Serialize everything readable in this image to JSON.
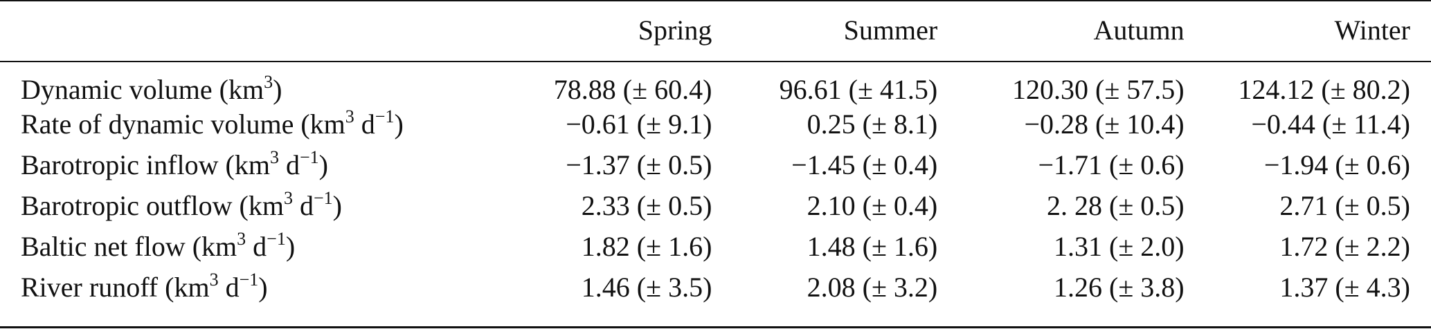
{
  "table": {
    "columns": [
      "",
      "Spring",
      "Summer",
      "Autumn",
      "Winter"
    ],
    "rows": [
      {
        "name": "Dynamic volume",
        "unit": "(km3)",
        "values": [
          "78.88 (± 60.4)",
          "96.61 (± 41.5)",
          "120.30 (± 57.5)",
          "124.12 (± 80.2)"
        ]
      },
      {
        "name": "Rate of dynamic volume",
        "unit": "(km3 d−1)",
        "values": [
          "−0.61 (± 9.1)",
          "0.25 (± 8.1)",
          "−0.28 (± 10.4)",
          "−0.44 (± 11.4)"
        ]
      },
      {
        "name": "Barotropic inflow",
        "unit": "(km3 d−1)",
        "values": [
          "−1.37 (± 0.5)",
          "−1.45 (± 0.4)",
          "−1.71 (± 0.6)",
          "−1.94 (± 0.6)"
        ]
      },
      {
        "name": "Barotropic outflow",
        "unit": "(km3 d−1)",
        "values": [
          "2.33 (± 0.5)",
          "2.10 (± 0.4)",
          "2. 28 (± 0.5)",
          "2.71 (± 0.5)"
        ]
      },
      {
        "name": "Baltic net flow",
        "unit": "(km3 d−1)",
        "values": [
          "1.82 (± 1.6)",
          "1.48 (± 1.6)",
          "1.31 (± 2.0)",
          "1.72 (± 2.2)"
        ]
      },
      {
        "name": "River runoff",
        "unit": "(km3 d−1)",
        "values": [
          "1.46 (± 3.5)",
          "2.08 (± 3.2)",
          "1.26 (± 3.8)",
          "1.37 (± 4.3)"
        ]
      }
    ]
  }
}
